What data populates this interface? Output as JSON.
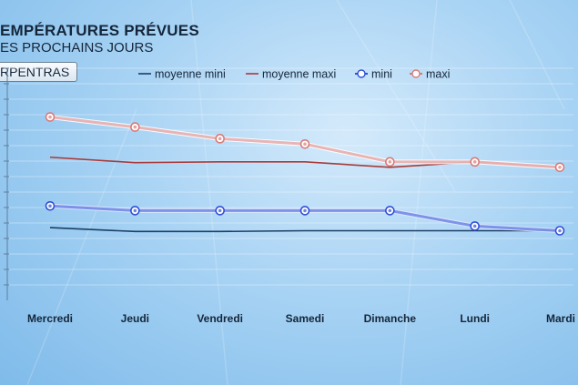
{
  "header": {
    "title": "EMPÉRATURES PRÉVUES",
    "subtitle": "ES PROCHAINS JOURS",
    "city": "RPENTRAS"
  },
  "colors": {
    "moyenne_mini": "#1b3f66",
    "moyenne_maxi": "#a83a38",
    "mini": "#2f4fd6",
    "maxi": "#d97a78",
    "text": "#15263a"
  },
  "chart_data": {
    "type": "line",
    "categories": [
      "Mercredi",
      "Jeudi",
      "Vendredi",
      "Samedi",
      "Dimanche",
      "Lundi",
      "Mardi"
    ],
    "ylim": [
      0,
      30
    ],
    "grid": true,
    "legend_position": "top",
    "series": [
      {
        "name": "moyenne mini",
        "values": [
          9.4,
          8.9,
          8.9,
          9.0,
          9.0,
          9.0,
          9.0
        ]
      },
      {
        "name": "moyenne maxi",
        "values": [
          18.5,
          17.8,
          17.9,
          17.9,
          17.2,
          17.9,
          17.2
        ]
      },
      {
        "name": "mini",
        "values": [
          12.2,
          11.6,
          11.6,
          11.6,
          11.6,
          9.6,
          9.0
        ]
      },
      {
        "name": "maxi",
        "values": [
          23.7,
          22.4,
          20.9,
          20.2,
          17.9,
          17.9,
          17.2
        ]
      }
    ]
  }
}
